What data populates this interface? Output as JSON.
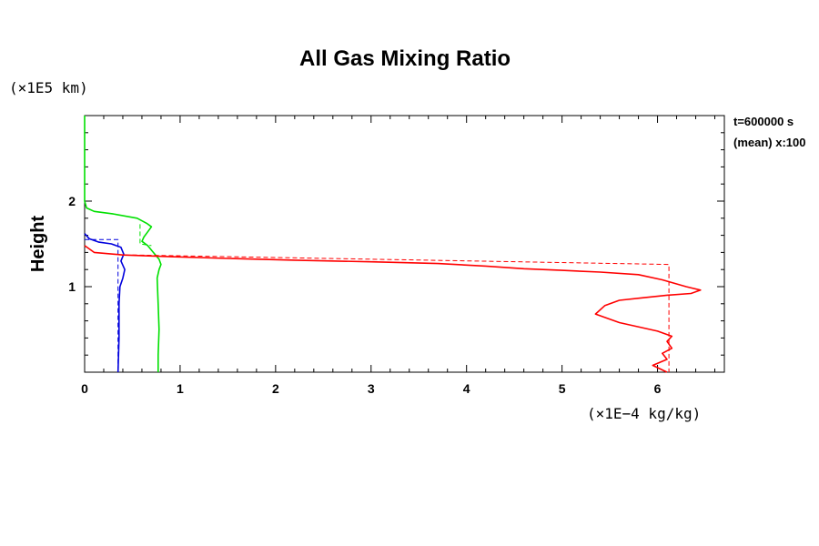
{
  "chart_data": {
    "type": "line",
    "title": "All Gas Mixing Ratio",
    "ylabel": "Height",
    "y_unit": "(×1E5 km)",
    "x_unit": "(×1E−4 kg/kg)",
    "annotations": [
      "t=600000 s",
      "(mean) x:100"
    ],
    "xlim": [
      0,
      6.7
    ],
    "ylim": [
      0,
      3.0
    ],
    "x_ticks": [
      0,
      1,
      2,
      3,
      4,
      5,
      6
    ],
    "y_ticks": [
      1,
      2
    ],
    "grid": false,
    "series": [
      {
        "color": "#00e000",
        "style": "solid",
        "x": [
          0,
          0,
          0.02,
          0.1,
          0.3,
          0.55,
          0.65,
          0.7,
          0.66,
          0.62,
          0.6,
          0.66,
          0.72,
          0.78,
          0.8,
          0.78,
          0.76,
          0.77,
          0.78,
          0.77,
          0.77
        ],
        "y": [
          3.0,
          2.0,
          1.92,
          1.88,
          1.85,
          1.8,
          1.74,
          1.7,
          1.64,
          1.58,
          1.53,
          1.48,
          1.4,
          1.32,
          1.26,
          1.2,
          1.1,
          0.8,
          0.5,
          0.2,
          0.0
        ]
      },
      {
        "color": "#00e000",
        "style": "dashed",
        "x": [
          0.58,
          0.58,
          0.7
        ],
        "y": [
          1.73,
          1.5,
          1.48
        ]
      },
      {
        "color": "#0000dd",
        "style": "solid",
        "x": [
          0,
          0.05,
          0.15,
          0.28,
          0.38,
          0.41,
          0.38,
          0.42,
          0.4,
          0.37,
          0.36,
          0.36,
          0.35
        ],
        "y": [
          1.62,
          1.56,
          1.52,
          1.5,
          1.46,
          1.38,
          1.3,
          1.2,
          1.1,
          1.0,
          0.8,
          0.4,
          0.0
        ]
      },
      {
        "color": "#0000dd",
        "style": "dashed",
        "x": [
          0,
          0.35,
          0.35
        ],
        "y": [
          1.55,
          1.55,
          0.0
        ]
      },
      {
        "color": "#ff0000",
        "style": "solid",
        "x": [
          0,
          0.1,
          0.4,
          0.9,
          1.5,
          2.2,
          3.0,
          3.7,
          4.2,
          4.6,
          5.0,
          5.4,
          5.8,
          6.05,
          6.3,
          6.45,
          6.35,
          6.1,
          5.85,
          5.6,
          5.45,
          5.35,
          5.6,
          6.0,
          6.15,
          6.1,
          6.15,
          6.05,
          6.1,
          5.95,
          6.1
        ],
        "y": [
          1.48,
          1.4,
          1.37,
          1.35,
          1.33,
          1.31,
          1.29,
          1.27,
          1.24,
          1.21,
          1.19,
          1.17,
          1.14,
          1.08,
          1.0,
          0.96,
          0.92,
          0.9,
          0.87,
          0.84,
          0.78,
          0.68,
          0.58,
          0.48,
          0.42,
          0.36,
          0.28,
          0.22,
          0.15,
          0.08,
          0.0
        ]
      },
      {
        "color": "#ff0000",
        "style": "dashed",
        "x": [
          0.5,
          6.12,
          6.12
        ],
        "y": [
          1.37,
          1.26,
          0.0
        ]
      }
    ]
  }
}
